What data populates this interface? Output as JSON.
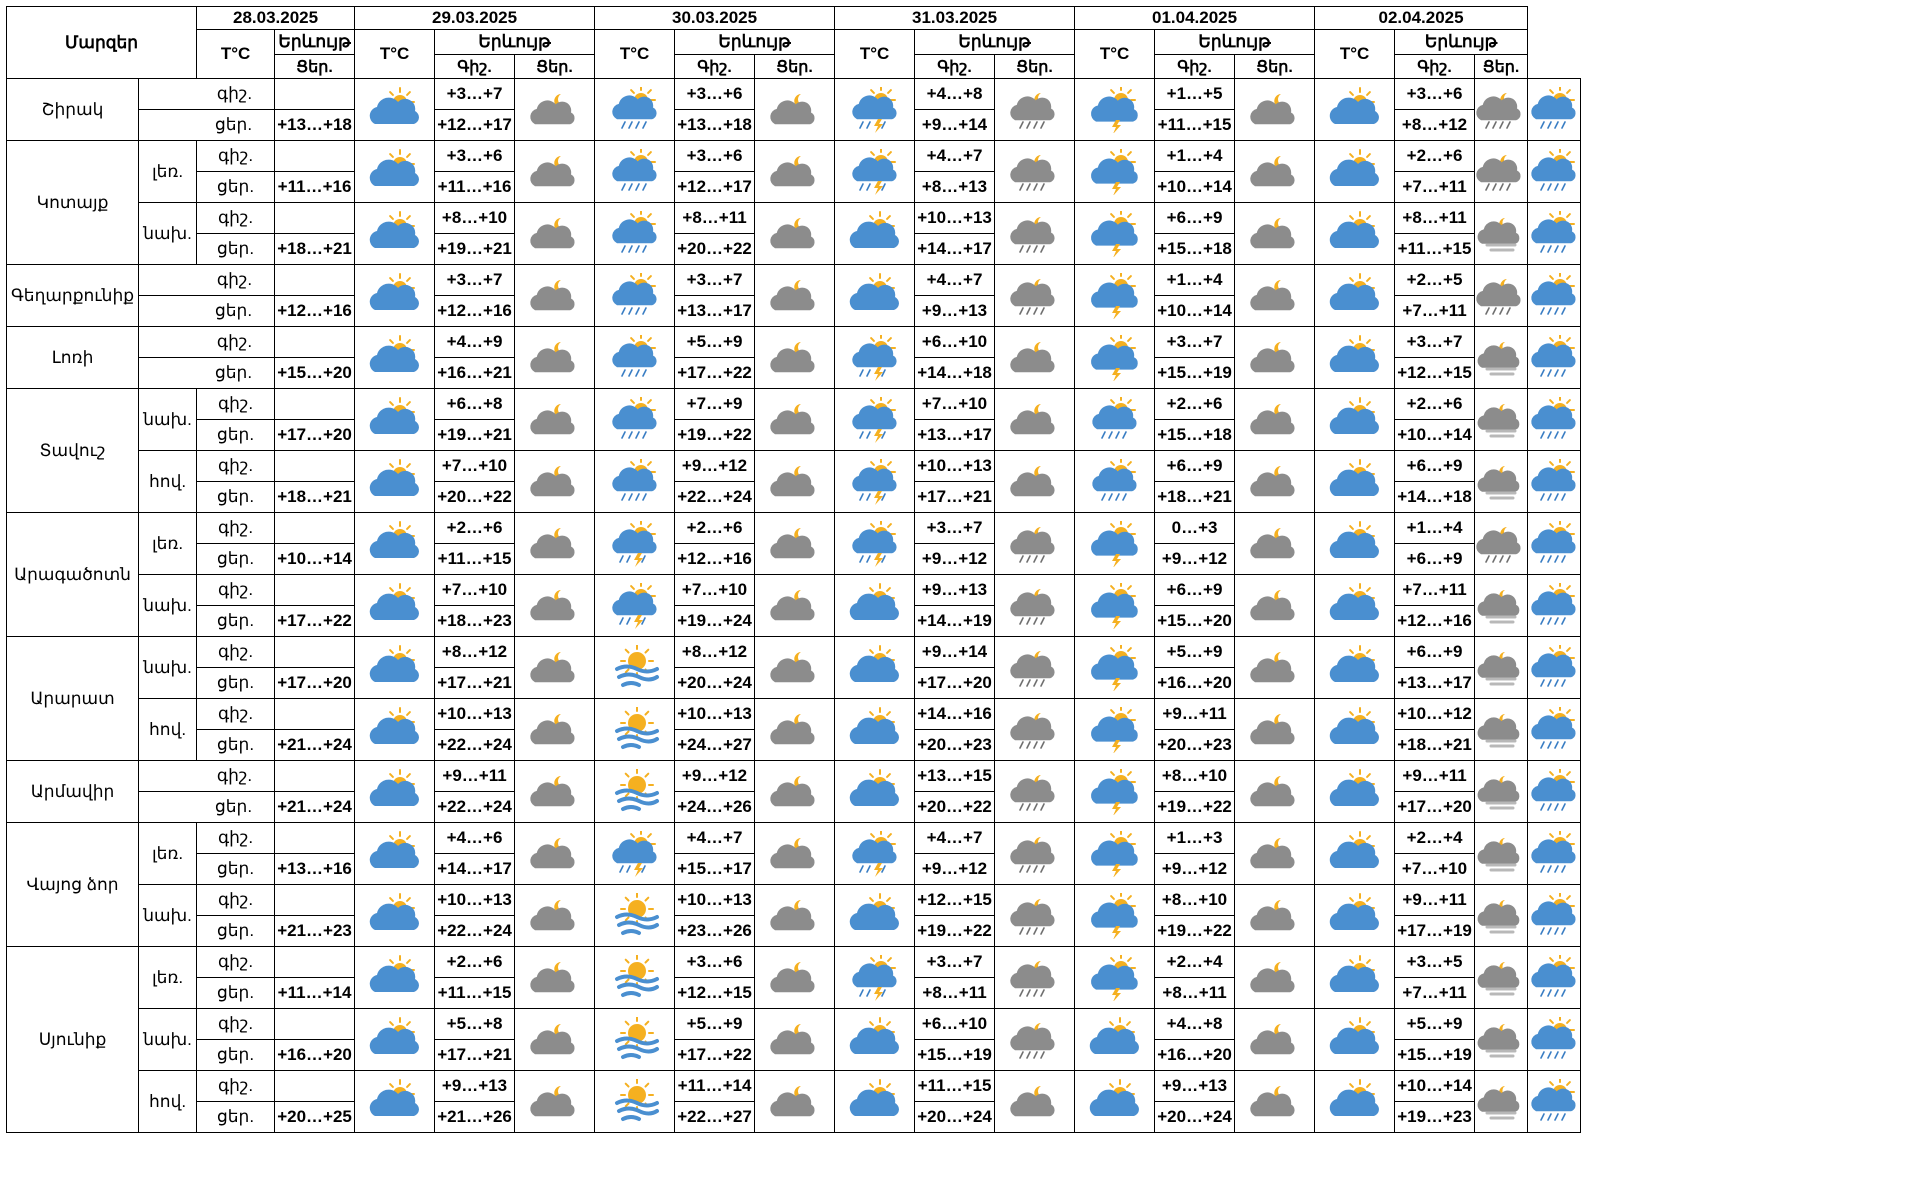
{
  "header": {
    "region_label": "Մարզեր",
    "temp_label": "T°C",
    "phenomenon_label": "Երևույթ",
    "night_label": "Գիշ.",
    "day_label": "Ցեր."
  },
  "dates": [
    "28.03.2025",
    "29.03.2025",
    "30.03.2025",
    "31.03.2025",
    "01.04.2025",
    "02.04.2025"
  ],
  "time_labels": {
    "night": "գիշ.",
    "day": "ցեր."
  },
  "icon_names": {
    "A": "partly-sunny-icon",
    "B": "cloudy-night-icon",
    "C": "sun-rain-icon",
    "D": "sun-storm-icon",
    "E": "cloud-storm-icon",
    "F": "night-rain-icon",
    "G": "sun-fog-icon",
    "H": "night-fog-icon"
  },
  "colors": {
    "gray_cloud": "#8c8c8c",
    "blue_cloud": "#4a8fd0",
    "sun": "#f5b020",
    "rain": "#3a7ec4"
  },
  "groups": [
    {
      "region": "Շիրակ",
      "rows": [
        {
          "label": "",
          "night": [
            "",
            "+3…+7",
            "+3…+6",
            "+4…+8",
            "+1…+5",
            "+3…+6"
          ],
          "day": [
            "+13…+18",
            "+12…+17",
            "+13…+18",
            "+9…+14",
            "+11…+15",
            "+8…+12"
          ],
          "icons": [
            "A",
            "B",
            "C",
            "B",
            "D",
            "F",
            "E",
            "B",
            "A",
            "F",
            "C"
          ]
        }
      ]
    },
    {
      "region": "Կոտայք",
      "rows": [
        {
          "label": "լեռ.",
          "night": [
            "",
            "+3…+6",
            "+3…+6",
            "+4…+7",
            "+1…+4",
            "+2…+6"
          ],
          "day": [
            "+11…+16",
            "+11…+16",
            "+12…+17",
            "+8…+13",
            "+10…+14",
            "+7…+11"
          ],
          "icons": [
            "A",
            "B",
            "C",
            "B",
            "D",
            "F",
            "E",
            "B",
            "A",
            "F",
            "C"
          ]
        },
        {
          "label": "նախ.",
          "night": [
            "",
            "+8…+10",
            "+8…+11",
            "+10…+13",
            "+6…+9",
            "+8…+11"
          ],
          "day": [
            "+18…+21",
            "+19…+21",
            "+20…+22",
            "+14…+17",
            "+15…+18",
            "+11…+15"
          ],
          "icons": [
            "A",
            "B",
            "C",
            "B",
            "A",
            "F",
            "E",
            "B",
            "A",
            "H",
            "C"
          ]
        }
      ]
    },
    {
      "region": "Գեղարքունիք",
      "rows": [
        {
          "label": "",
          "night": [
            "",
            "+3…+7",
            "+3…+7",
            "+4…+7",
            "+1…+4",
            "+2…+5"
          ],
          "day": [
            "+12…+16",
            "+12…+16",
            "+13…+17",
            "+9…+13",
            "+10…+14",
            "+7…+11"
          ],
          "icons": [
            "A",
            "B",
            "C",
            "B",
            "A",
            "F",
            "E",
            "B",
            "A",
            "F",
            "C"
          ]
        }
      ]
    },
    {
      "region": "Լոռի",
      "rows": [
        {
          "label": "",
          "night": [
            "",
            "+4…+9",
            "+5…+9",
            "+6…+10",
            "+3…+7",
            "+3…+7"
          ],
          "day": [
            "+15…+20",
            "+16…+21",
            "+17…+22",
            "+14…+18",
            "+15…+19",
            "+12…+15"
          ],
          "icons": [
            "A",
            "B",
            "C",
            "B",
            "D",
            "B",
            "E",
            "B",
            "A",
            "H",
            "C"
          ]
        }
      ]
    },
    {
      "region": "Տավուշ",
      "rows": [
        {
          "label": "նախ.",
          "night": [
            "",
            "+6…+8",
            "+7…+9",
            "+7…+10",
            "+2…+6",
            "+2…+6"
          ],
          "day": [
            "+17…+20",
            "+19…+21",
            "+19…+22",
            "+13…+17",
            "+15…+18",
            "+10…+14"
          ],
          "icons": [
            "A",
            "B",
            "C",
            "B",
            "D",
            "B",
            "C",
            "B",
            "A",
            "H",
            "C"
          ]
        },
        {
          "label": "հով.",
          "night": [
            "",
            "+7…+10",
            "+9…+12",
            "+10…+13",
            "+6…+9",
            "+6…+9"
          ],
          "day": [
            "+18…+21",
            "+20…+22",
            "+22…+24",
            "+17…+21",
            "+18…+21",
            "+14…+18"
          ],
          "icons": [
            "A",
            "B",
            "C",
            "B",
            "D",
            "B",
            "C",
            "B",
            "A",
            "H",
            "C"
          ]
        }
      ]
    },
    {
      "region": "Արագածոտն",
      "rows": [
        {
          "label": "լեռ.",
          "night": [
            "",
            "+2…+6",
            "+2…+6",
            "+3…+7",
            "0…+3",
            "+1…+4"
          ],
          "day": [
            "+10…+14",
            "+11…+15",
            "+12…+16",
            "+9…+12",
            "+9…+12",
            "+6…+9"
          ],
          "icons": [
            "A",
            "B",
            "D",
            "B",
            "D",
            "F",
            "E",
            "B",
            "A",
            "F",
            "C"
          ]
        },
        {
          "label": "նախ.",
          "night": [
            "",
            "+7…+10",
            "+7…+10",
            "+9…+13",
            "+6…+9",
            "+7…+11"
          ],
          "day": [
            "+17…+22",
            "+18…+23",
            "+19…+24",
            "+14…+19",
            "+15…+20",
            "+12…+16"
          ],
          "icons": [
            "A",
            "B",
            "D",
            "B",
            "A",
            "F",
            "E",
            "B",
            "A",
            "H",
            "C"
          ]
        }
      ]
    },
    {
      "region": "Արարատ",
      "rows": [
        {
          "label": "նախ.",
          "night": [
            "",
            "+8…+12",
            "+8…+12",
            "+9…+14",
            "+5…+9",
            "+6…+9"
          ],
          "day": [
            "+17…+20",
            "+17…+21",
            "+20…+24",
            "+17…+20",
            "+16…+20",
            "+13…+17"
          ],
          "icons": [
            "A",
            "B",
            "G",
            "B",
            "A",
            "F",
            "E",
            "B",
            "A",
            "H",
            "C"
          ]
        },
        {
          "label": "հով.",
          "night": [
            "",
            "+10…+13",
            "+10…+13",
            "+14…+16",
            "+9…+11",
            "+10…+12"
          ],
          "day": [
            "+21…+24",
            "+22…+24",
            "+24…+27",
            "+20…+23",
            "+20…+23",
            "+18…+21"
          ],
          "icons": [
            "A",
            "B",
            "G",
            "B",
            "A",
            "F",
            "E",
            "B",
            "A",
            "H",
            "C"
          ]
        }
      ]
    },
    {
      "region": "Արմավիր",
      "rows": [
        {
          "label": "",
          "night": [
            "",
            "+9…+11",
            "+9…+12",
            "+13…+15",
            "+8…+10",
            "+9…+11"
          ],
          "day": [
            "+21…+24",
            "+22…+24",
            "+24…+26",
            "+20…+22",
            "+19…+22",
            "+17…+20"
          ],
          "icons": [
            "A",
            "B",
            "G",
            "B",
            "A",
            "F",
            "E",
            "B",
            "A",
            "H",
            "C"
          ]
        }
      ]
    },
    {
      "region": "Վայոց ձոր",
      "rows": [
        {
          "label": "լեռ.",
          "night": [
            "",
            "+4…+6",
            "+4…+7",
            "+4…+7",
            "+1…+3",
            "+2…+4"
          ],
          "day": [
            "+13…+16",
            "+14…+17",
            "+15…+17",
            "+9…+12",
            "+9…+12",
            "+7…+10"
          ],
          "icons": [
            "A",
            "B",
            "D",
            "B",
            "D",
            "F",
            "E",
            "B",
            "A",
            "H",
            "C"
          ]
        },
        {
          "label": "նախ.",
          "night": [
            "",
            "+10…+13",
            "+10…+13",
            "+12…+15",
            "+8…+10",
            "+9…+11"
          ],
          "day": [
            "+21…+23",
            "+22…+24",
            "+23…+26",
            "+19…+22",
            "+19…+22",
            "+17…+19"
          ],
          "icons": [
            "A",
            "B",
            "G",
            "B",
            "A",
            "F",
            "E",
            "B",
            "A",
            "H",
            "C"
          ]
        }
      ]
    },
    {
      "region": "Սյունիք",
      "rows": [
        {
          "label": "լեռ.",
          "night": [
            "",
            "+2…+6",
            "+3…+6",
            "+3…+7",
            "+2…+4",
            "+3…+5"
          ],
          "day": [
            "+11…+14",
            "+11…+15",
            "+12…+15",
            "+8…+11",
            "+8…+11",
            "+7…+11"
          ],
          "icons": [
            "A",
            "B",
            "G",
            "B",
            "D",
            "F",
            "E",
            "B",
            "A",
            "H",
            "C"
          ]
        },
        {
          "label": "նախ.",
          "night": [
            "",
            "+5…+8",
            "+5…+9",
            "+6…+10",
            "+4…+8",
            "+5…+9"
          ],
          "day": [
            "+16…+20",
            "+17…+21",
            "+17…+22",
            "+15…+19",
            "+16…+20",
            "+15…+19"
          ],
          "icons": [
            "A",
            "B",
            "G",
            "B",
            "A",
            "F",
            "A",
            "B",
            "A",
            "H",
            "C"
          ]
        },
        {
          "label": "հով.",
          "night": [
            "",
            "+9…+13",
            "+11…+14",
            "+11…+15",
            "+9…+13",
            "+10…+14"
          ],
          "day": [
            "+20…+25",
            "+21…+26",
            "+22…+27",
            "+20…+24",
            "+20…+24",
            "+19…+23"
          ],
          "icons": [
            "A",
            "B",
            "G",
            "B",
            "A",
            "B",
            "A",
            "B",
            "A",
            "H",
            "C"
          ]
        }
      ]
    }
  ]
}
